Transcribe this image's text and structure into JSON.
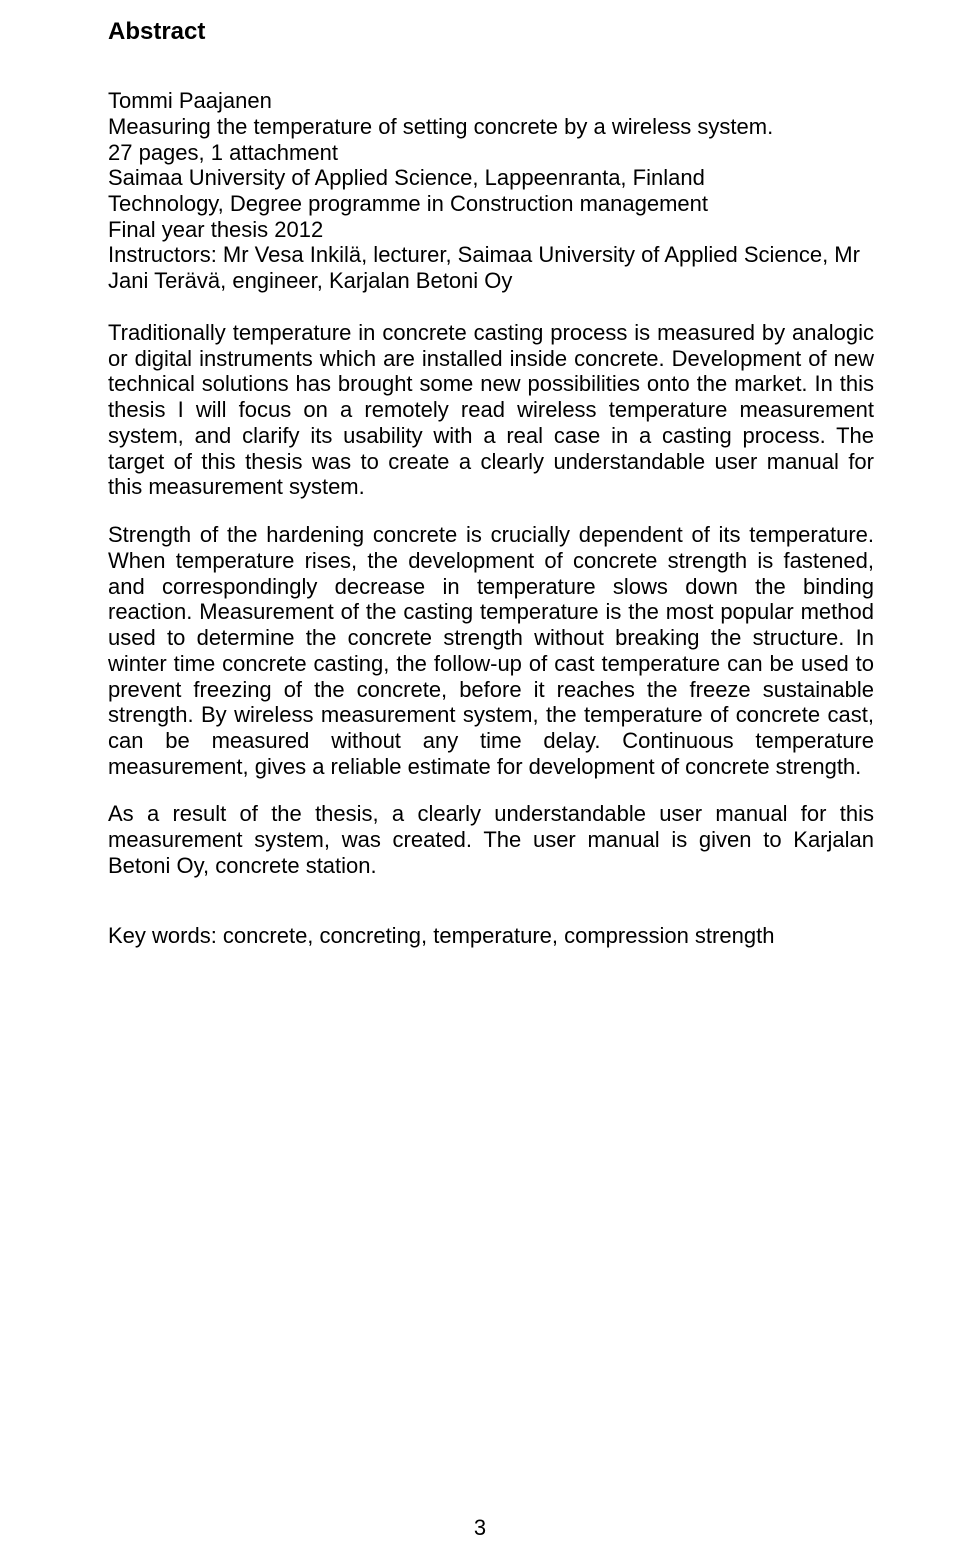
{
  "heading": "Abstract",
  "meta": {
    "author": "Tommi Paajanen",
    "title": "Measuring the temperature of setting concrete by a wireless system.",
    "extent": "27 pages, 1 attachment",
    "institution": "Saimaa University of Applied Science, Lappeenranta, Finland",
    "programme": "Technology, Degree programme in Construction management",
    "thesis_type": "Final year thesis 2012",
    "instructors": "Instructors: Mr Vesa Inkilä, lecturer, Saimaa University of Applied Science, Mr Jani Terävä, engineer, Karjalan Betoni Oy"
  },
  "paragraphs": {
    "p1": "Traditionally temperature in concrete casting process is measured by analogic or digital instruments which are installed inside concrete. Development of new technical solutions has brought some new possibilities onto the market. In this thesis I will focus on a remotely read wireless temperature measurement system, and clarify its usability with a real case in a casting process. The target of this thesis was to create a clearly understandable user manual for this measurement system.",
    "p2": "Strength of the hardening concrete is crucially dependent of its temperature. When temperature rises, the development of concrete strength is fastened, and correspondingly decrease in temperature slows down the binding reaction. Measurement of the casting temperature is the most popular method used to determine the concrete strength without breaking the structure. In winter time concrete casting, the follow-up of cast temperature can be used to prevent freezing of the concrete, before it reaches the freeze sustainable strength. By wireless measurement system, the temperature of concrete cast, can be measured without any time delay. Continuous temperature measurement, gives a reliable estimate for development of concrete strength.",
    "p3": "As a result of the thesis, a clearly understandable user manual for this measurement system, was created. The user manual is given to Karjalan Betoni Oy, concrete station."
  },
  "keywords": "Key words: concrete, concreting, temperature, compression strength",
  "page_number": "3"
}
